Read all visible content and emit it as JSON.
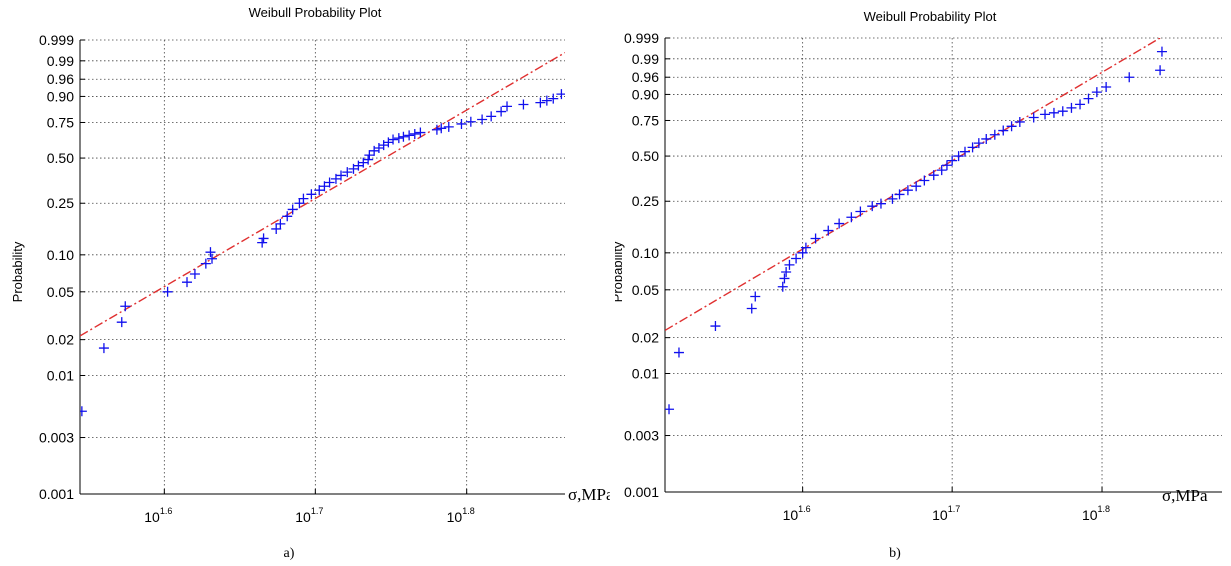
{
  "chart_data": [
    {
      "type": "scatter",
      "title": "Weibull Probability Plot",
      "ylabel": "Probability",
      "xlabel": "σ,MPa",
      "caption": "a)",
      "x_scale": "log",
      "y_scale": "weibull",
      "xlim": [
        35.0,
        73.3
      ],
      "ylim": [
        0.001,
        0.999
      ],
      "grid": true,
      "x_ticks": [
        39.8,
        50.1,
        63.1
      ],
      "x_tick_labels": [
        {
          "base": "10",
          "exp": "1.6"
        },
        {
          "base": "10",
          "exp": "1.7"
        },
        {
          "base": "10",
          "exp": "1.8"
        }
      ],
      "y_ticks": [
        0.001,
        0.003,
        0.01,
        0.02,
        0.05,
        0.1,
        0.25,
        0.5,
        0.75,
        0.9,
        0.96,
        0.99,
        0.999
      ],
      "y_tick_labels": [
        "0.001",
        "0.003",
        "0.01",
        "0.02",
        "0.05",
        "0.10",
        "0.25",
        "0.50",
        "0.75",
        "0.90",
        "0.96",
        "0.99",
        "0.999"
      ],
      "colors": {
        "points": "#1010ee",
        "fit": "#e03030"
      },
      "fit": {
        "points": [
          [
            35.0,
            0.0215
          ],
          [
            73.3,
            0.9955
          ]
        ]
      },
      "x": [
        35.1,
        36.3,
        37.3,
        37.5,
        40.0,
        41.2,
        41.7,
        42.4,
        42.8,
        42.7,
        46.2,
        46.3,
        47.2,
        47.5,
        48.0,
        48.4,
        48.9,
        49.2,
        49.8,
        50.4,
        50.8,
        51.2,
        51.7,
        52.1,
        52.6,
        53.1,
        53.5,
        53.9,
        54.3,
        54.4,
        54.8,
        55.2,
        55.6,
        56.0,
        56.4,
        56.9,
        57.3,
        57.8,
        58.3,
        58.8,
        60.3,
        60.7,
        61.4,
        62.6,
        63.5,
        64.6,
        65.5,
        66.5,
        67.1,
        68.8,
        70.6,
        71.3,
        72.0,
        72.9
      ],
      "y": [
        0.005,
        0.017,
        0.028,
        0.038,
        0.05,
        0.06,
        0.07,
        0.085,
        0.093,
        0.105,
        0.125,
        0.135,
        0.16,
        0.175,
        0.2,
        0.225,
        0.25,
        0.27,
        0.29,
        0.31,
        0.33,
        0.35,
        0.37,
        0.39,
        0.41,
        0.43,
        0.45,
        0.47,
        0.49,
        0.52,
        0.55,
        0.57,
        0.59,
        0.61,
        0.63,
        0.64,
        0.65,
        0.66,
        0.67,
        0.68,
        0.7,
        0.71,
        0.72,
        0.74,
        0.755,
        0.77,
        0.79,
        0.82,
        0.85,
        0.86,
        0.87,
        0.88,
        0.89,
        0.91
      ]
    },
    {
      "type": "scatter",
      "title": "Weibull Probability Plot",
      "ylabel": "Probability",
      "xlabel": "σ,MPa",
      "caption": "b)",
      "x_scale": "log",
      "y_scale": "weibull",
      "xlim": [
        32.2,
        75.9
      ],
      "ylim": [
        0.001,
        0.999
      ],
      "grid": true,
      "x_ticks": [
        39.8,
        50.1,
        63.1
      ],
      "x_tick_labels": [
        {
          "base": "10",
          "exp": "1.6"
        },
        {
          "base": "10",
          "exp": "1.7"
        },
        {
          "base": "10",
          "exp": "1.8"
        }
      ],
      "y_ticks": [
        0.001,
        0.003,
        0.01,
        0.02,
        0.05,
        0.1,
        0.25,
        0.5,
        0.75,
        0.9,
        0.96,
        0.99,
        0.999
      ],
      "y_tick_labels": [
        "0.001",
        "0.003",
        "0.01",
        "0.02",
        "0.05",
        "0.10",
        "0.25",
        "0.50",
        "0.75",
        "0.90",
        "0.96",
        "0.99",
        "0.999"
      ],
      "colors": {
        "points": "#1010ee",
        "fit": "#e03030"
      },
      "fit": {
        "points": [
          [
            32.2,
            0.023
          ],
          [
            69.0,
            0.999
          ]
        ]
      },
      "x": [
        32.4,
        32.9,
        34.8,
        36.8,
        37.0,
        38.6,
        38.7,
        38.8,
        39.0,
        39.4,
        39.8,
        40.0,
        40.6,
        41.4,
        42.1,
        42.9,
        43.5,
        44.3,
        44.9,
        45.7,
        46.2,
        46.8,
        47.4,
        48.0,
        48.7,
        49.3,
        49.7,
        50.1,
        50.6,
        51.1,
        51.7,
        52.2,
        52.8,
        53.5,
        54.2,
        54.9,
        55.6,
        56.8,
        57.8,
        58.6,
        59.4,
        60.2,
        61.0,
        61.8,
        62.6,
        63.5,
        65.8,
        69.0,
        69.2
      ],
      "y": [
        0.005,
        0.015,
        0.025,
        0.035,
        0.044,
        0.053,
        0.062,
        0.07,
        0.08,
        0.09,
        0.1,
        0.11,
        0.13,
        0.15,
        0.17,
        0.19,
        0.21,
        0.23,
        0.24,
        0.26,
        0.28,
        0.3,
        0.32,
        0.35,
        0.38,
        0.41,
        0.44,
        0.47,
        0.5,
        0.53,
        0.56,
        0.59,
        0.62,
        0.65,
        0.68,
        0.71,
        0.74,
        0.77,
        0.79,
        0.8,
        0.81,
        0.83,
        0.85,
        0.88,
        0.91,
        0.93,
        0.96,
        0.975,
        0.995
      ]
    }
  ]
}
